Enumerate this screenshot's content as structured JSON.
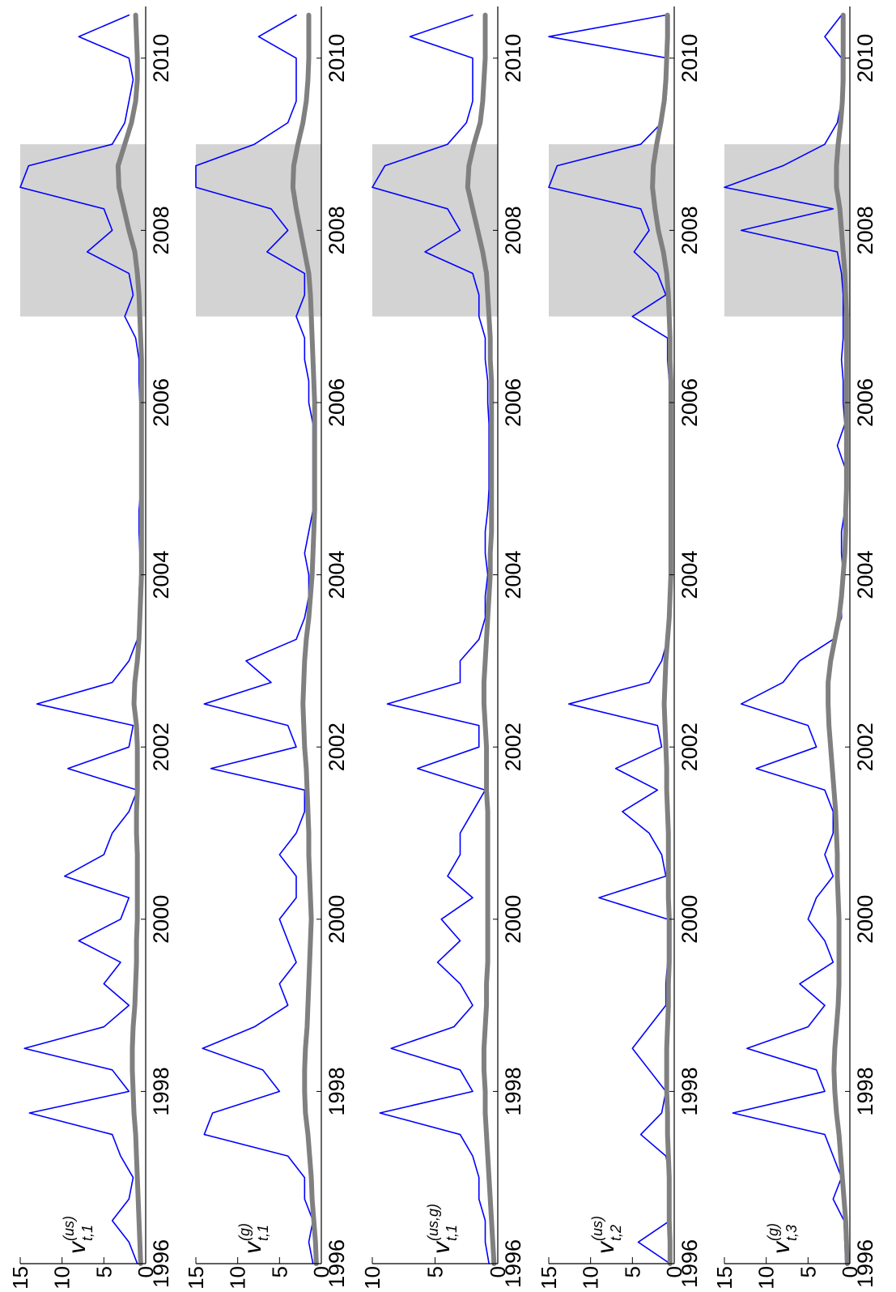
{
  "chart_data": [
    {
      "type": "line",
      "ylabel": {
        "base": "v",
        "sup": "(us)",
        "sub": "t,1"
      },
      "xlim": [
        1996,
        2010.6
      ],
      "xticks": [
        1996,
        1998,
        2000,
        2002,
        2004,
        2006,
        2008,
        2010
      ],
      "ylim": [
        0,
        15
      ],
      "yticks": [
        0,
        5,
        10,
        15
      ],
      "shade": {
        "x": [
          2007.0,
          2009.0
        ],
        "color": "#d3d3d3"
      },
      "x": [
        1996,
        1996.25,
        1996.5,
        1996.75,
        1997,
        1997.25,
        1997.5,
        1997.75,
        1998,
        1998.25,
        1998.5,
        1998.75,
        1999,
        1999.25,
        1999.5,
        1999.75,
        2000,
        2000.25,
        2000.5,
        2000.75,
        2001,
        2001.25,
        2001.5,
        2001.75,
        2002,
        2002.25,
        2002.5,
        2002.75,
        2003,
        2003.25,
        2003.5,
        2003.75,
        2004,
        2004.25,
        2004.5,
        2004.75,
        2005,
        2005.25,
        2005.5,
        2005.75,
        2006,
        2006.25,
        2006.5,
        2006.75,
        2007,
        2007.25,
        2007.5,
        2007.75,
        2008,
        2008.25,
        2008.5,
        2008.75,
        2009,
        2009.25,
        2009.5,
        2009.75,
        2010,
        2010.25,
        2010.5
      ],
      "series": [
        {
          "color": "#0000ff",
          "values": [
            1,
            2,
            4,
            2,
            1.5,
            3,
            4,
            13.9,
            2,
            4,
            14.5,
            5,
            2,
            5,
            3,
            8,
            3,
            2,
            9.7,
            5,
            4,
            2,
            1,
            9.3,
            2,
            1.5,
            13,
            4,
            2,
            1,
            0.8,
            0.8,
            0.7,
            0.7,
            0.8,
            0.8,
            0.6,
            0.6,
            0.6,
            0.6,
            0.7,
            0.8,
            0.8,
            1.2,
            2.5,
            1.5,
            2,
            7,
            4,
            5,
            15,
            14,
            4,
            2.5,
            2,
            1.5,
            2,
            8,
            2
          ]
        },
        {
          "color": "#808080",
          "values": [
            0.6,
            0.7,
            0.8,
            0.9,
            1,
            1.1,
            1.2,
            1.4,
            1.5,
            1.6,
            1.6,
            1.5,
            1.3,
            1.2,
            1.1,
            1.1,
            1,
            1,
            1,
            1,
            1.1,
            1.1,
            1,
            1,
            1,
            1.1,
            1.4,
            1.3,
            1,
            0.8,
            0.7,
            0.6,
            0.5,
            0.5,
            0.5,
            0.5,
            0.5,
            0.5,
            0.5,
            0.5,
            0.5,
            0.5,
            0.5,
            0.6,
            0.7,
            0.8,
            1,
            1.3,
            2,
            2.6,
            3.2,
            3.3,
            2.5,
            1.7,
            1.2,
            1,
            1,
            1.1,
            1.2
          ]
        }
      ]
    },
    {
      "type": "line",
      "ylabel": {
        "base": "v",
        "sup": "(g)",
        "sub": "t,1"
      },
      "xlim": [
        1996,
        2010.6
      ],
      "xticks": [
        1996,
        1998,
        2000,
        2002,
        2004,
        2006,
        2008,
        2010
      ],
      "ylim": [
        0,
        15
      ],
      "yticks": [
        0,
        5,
        10,
        15
      ],
      "shade": {
        "x": [
          2007.0,
          2009.0
        ],
        "color": "#d3d3d3"
      },
      "x": [
        1996,
        1996.25,
        1996.5,
        1996.75,
        1997,
        1997.25,
        1997.5,
        1997.75,
        1998,
        1998.25,
        1998.5,
        1998.75,
        1999,
        1999.25,
        1999.5,
        1999.75,
        2000,
        2000.25,
        2000.5,
        2000.75,
        2001,
        2001.25,
        2001.5,
        2001.75,
        2002,
        2002.25,
        2002.5,
        2002.75,
        2003,
        2003.25,
        2003.5,
        2003.75,
        2004,
        2004.25,
        2004.5,
        2004.75,
        2005,
        2005.25,
        2005.5,
        2005.75,
        2006,
        2006.25,
        2006.5,
        2006.75,
        2007,
        2007.25,
        2007.5,
        2007.75,
        2008,
        2008.25,
        2008.5,
        2008.75,
        2009,
        2009.25,
        2009.5,
        2009.75,
        2010,
        2010.25,
        2010.5
      ],
      "series": [
        {
          "color": "#0000ff",
          "values": [
            1,
            1.5,
            1,
            2,
            2,
            4,
            14,
            13,
            5,
            7,
            14.2,
            8,
            4,
            5,
            3,
            4,
            5,
            3,
            3,
            5,
            3,
            2,
            2,
            13.2,
            3,
            4,
            14,
            6,
            9,
            3,
            2,
            1.5,
            1.5,
            2,
            1.5,
            1,
            1,
            1,
            1,
            1,
            1.5,
            1.5,
            2,
            2,
            3,
            2,
            2,
            6.5,
            4,
            6,
            15,
            15,
            8,
            4,
            3,
            3,
            3,
            7.5,
            3
          ]
        },
        {
          "color": "#808080",
          "values": [
            0.6,
            0.7,
            0.9,
            1.1,
            1.2,
            1.4,
            1.6,
            1.9,
            2,
            2,
            1.9,
            1.7,
            1.6,
            1.5,
            1.4,
            1.3,
            1.2,
            1.3,
            1.4,
            1.5,
            1.5,
            1.6,
            1.7,
            1.8,
            2,
            2.1,
            2.2,
            2.1,
            2,
            1.8,
            1.5,
            1.3,
            1.1,
            1,
            0.9,
            0.8,
            0.8,
            0.8,
            0.8,
            0.8,
            0.8,
            0.9,
            1,
            1.1,
            1.2,
            1.3,
            1.5,
            2,
            2.5,
            3,
            3.4,
            3.3,
            2.8,
            2.2,
            1.8,
            1.6,
            1.5,
            1.5,
            1.5
          ]
        }
      ]
    },
    {
      "type": "line",
      "ylabel": {
        "base": "v",
        "sup": "(us,g)",
        "sub": "t,1"
      },
      "xlim": [
        1996,
        2010.6
      ],
      "xticks": [
        1996,
        1998,
        2000,
        2002,
        2004,
        2006,
        2008,
        2010
      ],
      "ylim": [
        0,
        10
      ],
      "yticks": [
        0,
        5,
        10
      ],
      "shade": {
        "x": [
          2007.0,
          2009.0
        ],
        "color": "#d3d3d3"
      },
      "x": [
        1996,
        1996.25,
        1996.5,
        1996.75,
        1997,
        1997.25,
        1997.5,
        1997.75,
        1998,
        1998.25,
        1998.5,
        1998.75,
        1999,
        1999.25,
        1999.5,
        1999.75,
        2000,
        2000.25,
        2000.5,
        2000.75,
        2001,
        2001.25,
        2001.5,
        2001.75,
        2002,
        2002.25,
        2002.5,
        2002.75,
        2003,
        2003.25,
        2003.5,
        2003.75,
        2004,
        2004.25,
        2004.5,
        2004.75,
        2005,
        2005.25,
        2005.5,
        2005.75,
        2006,
        2006.25,
        2006.5,
        2006.75,
        2007,
        2007.25,
        2007.5,
        2007.75,
        2008,
        2008.25,
        2008.5,
        2008.75,
        2009,
        2009.25,
        2009.5,
        2009.75,
        2010,
        2010.25,
        2010.5
      ],
      "series": [
        {
          "color": "#0000ff",
          "values": [
            0.7,
            1,
            1,
            1.5,
            1.5,
            2,
            3,
            9.4,
            2,
            3,
            8.5,
            3.5,
            2,
            3,
            4.8,
            3,
            4.5,
            2,
            4,
            3,
            3,
            2,
            1,
            6.4,
            1.5,
            1.5,
            8.8,
            3,
            3,
            1.5,
            1,
            1,
            0.8,
            1,
            1,
            0.8,
            0.7,
            0.7,
            0.7,
            0.7,
            0.8,
            0.8,
            1,
            1,
            1.5,
            1.5,
            2,
            5.8,
            3,
            4,
            10,
            9,
            4,
            2.5,
            2,
            2,
            2,
            7,
            2
          ]
        },
        {
          "color": "#808080",
          "values": [
            0.3,
            0.4,
            0.5,
            0.6,
            0.7,
            0.8,
            0.9,
            1,
            1,
            1.1,
            1.1,
            1,
            0.9,
            0.9,
            0.8,
            0.8,
            0.8,
            0.8,
            0.8,
            0.8,
            0.8,
            0.8,
            0.9,
            0.9,
            0.9,
            1,
            1.1,
            1.1,
            1,
            0.9,
            0.8,
            0.7,
            0.6,
            0.6,
            0.5,
            0.5,
            0.5,
            0.5,
            0.5,
            0.5,
            0.5,
            0.5,
            0.6,
            0.6,
            0.7,
            0.8,
            0.9,
            1.2,
            1.6,
            2,
            2.4,
            2.3,
            1.9,
            1.4,
            1.2,
            1.1,
            1,
            1,
            1
          ]
        }
      ]
    },
    {
      "type": "line",
      "ylabel": {
        "base": "v",
        "sup": "(us)",
        "sub": "t,2"
      },
      "xlim": [
        1996,
        2010.6
      ],
      "xticks": [
        1996,
        1998,
        2000,
        2002,
        2004,
        2006,
        2008,
        2010
      ],
      "ylim": [
        0,
        15
      ],
      "yticks": [
        0,
        5,
        10,
        15
      ],
      "shade": {
        "x": [
          2007.0,
          2009.0
        ],
        "color": "#d3d3d3"
      },
      "x": [
        1996,
        1996.25,
        1996.5,
        1996.75,
        1997,
        1997.25,
        1997.5,
        1997.75,
        1998,
        1998.25,
        1998.5,
        1998.75,
        1999,
        1999.25,
        1999.5,
        1999.75,
        2000,
        2000.25,
        2000.5,
        2000.75,
        2001,
        2001.25,
        2001.5,
        2001.75,
        2002,
        2002.25,
        2002.5,
        2002.75,
        2003,
        2003.25,
        2003.5,
        2003.75,
        2004,
        2004.25,
        2004.5,
        2004.75,
        2005,
        2005.25,
        2005.5,
        2005.75,
        2006,
        2006.25,
        2006.5,
        2006.75,
        2007,
        2007.25,
        2007.5,
        2007.75,
        2008,
        2008.25,
        2008.5,
        2008.75,
        2009,
        2009.25,
        2009.5,
        2009.75,
        2010,
        2010.25,
        2010.5
      ],
      "series": [
        {
          "color": "#0000ff",
          "values": [
            0.5,
            4.3,
            0.5,
            0.8,
            0.5,
            1,
            4,
            1.5,
            1,
            3,
            5,
            3,
            1,
            1,
            0.8,
            0.8,
            0.8,
            9,
            1,
            1.5,
            3,
            6.2,
            2,
            7,
            1.5,
            2,
            12.6,
            3,
            1.5,
            0.8,
            0.6,
            0.6,
            0.5,
            0.5,
            0.5,
            0.5,
            0.5,
            0.5,
            0.5,
            0.5,
            0.5,
            0.6,
            0.8,
            0.8,
            5,
            1,
            2,
            4.8,
            3,
            4,
            15,
            14,
            4,
            1.5,
            1,
            0.8,
            0.8,
            15,
            1
          ]
        },
        {
          "color": "#808080",
          "values": [
            0.5,
            0.5,
            0.6,
            0.6,
            0.6,
            0.7,
            0.8,
            0.8,
            0.9,
            0.9,
            0.9,
            0.8,
            0.7,
            0.7,
            0.6,
            0.6,
            0.6,
            0.7,
            0.7,
            0.7,
            0.7,
            0.8,
            0.9,
            0.9,
            1,
            1.1,
            1.2,
            1.1,
            1,
            0.8,
            0.6,
            0.5,
            0.4,
            0.4,
            0.4,
            0.4,
            0.4,
            0.4,
            0.4,
            0.4,
            0.4,
            0.4,
            0.5,
            0.5,
            0.6,
            0.7,
            0.9,
            1.3,
            1.9,
            2.3,
            2.6,
            2.5,
            2.1,
            1.6,
            1.2,
            1,
            0.9,
            0.8,
            0.8
          ]
        }
      ]
    },
    {
      "type": "line",
      "ylabel": {
        "base": "v",
        "sup": "(g)",
        "sub": "t,3"
      },
      "xlim": [
        1996,
        2010.6
      ],
      "xticks": [
        1996,
        1998,
        2000,
        2002,
        2004,
        2006,
        2008,
        2010
      ],
      "ylim": [
        0,
        15
      ],
      "yticks": [
        0,
        5,
        10,
        15
      ],
      "shade": {
        "x": [
          2007.0,
          2009.0
        ],
        "color": "#d3d3d3"
      },
      "x": [
        1996,
        1996.25,
        1996.5,
        1996.75,
        1997,
        1997.25,
        1997.5,
        1997.75,
        1998,
        1998.25,
        1998.5,
        1998.75,
        1999,
        1999.25,
        1999.5,
        1999.75,
        2000,
        2000.25,
        2000.5,
        2000.75,
        2001,
        2001.25,
        2001.5,
        2001.75,
        2002,
        2002.25,
        2002.5,
        2002.75,
        2003,
        2003.25,
        2003.5,
        2003.75,
        2004,
        2004.25,
        2004.5,
        2004.75,
        2005,
        2005.25,
        2005.5,
        2005.75,
        2006,
        2006.25,
        2006.5,
        2006.75,
        2007,
        2007.25,
        2007.5,
        2007.75,
        2008,
        2008.25,
        2008.5,
        2008.75,
        2009,
        2009.25,
        2009.5,
        2009.75,
        2010,
        2010.25,
        2010.5
      ],
      "series": [
        {
          "color": "#0000ff",
          "values": [
            0.5,
            0.6,
            0.7,
            2,
            1,
            2,
            3,
            14,
            3,
            4,
            12.3,
            5,
            3,
            6,
            2,
            3,
            5,
            4,
            2,
            3,
            2,
            2,
            3,
            11.2,
            4,
            5,
            13,
            8,
            6,
            2,
            1,
            1,
            0.8,
            1,
            1,
            0.6,
            0.6,
            0.6,
            1.5,
            0.6,
            0.8,
            0.8,
            1,
            0.8,
            0.8,
            0.8,
            1,
            1.5,
            13,
            2,
            15,
            8,
            3,
            1.5,
            1,
            1,
            1,
            3,
            1
          ]
        },
        {
          "color": "#808080",
          "values": [
            0.3,
            0.4,
            0.5,
            0.7,
            0.9,
            1.1,
            1.3,
            1.6,
            1.8,
            1.9,
            1.8,
            1.6,
            1.4,
            1.3,
            1.3,
            1.3,
            1.3,
            1.4,
            1.5,
            1.5,
            1.6,
            1.7,
            1.9,
            2.1,
            2.3,
            2.5,
            2.6,
            2.6,
            2.3,
            1.8,
            1.3,
            1,
            0.8,
            0.6,
            0.5,
            0.5,
            0.4,
            0.4,
            0.4,
            0.4,
            0.4,
            0.4,
            0.4,
            0.4,
            0.4,
            0.5,
            0.6,
            0.8,
            1,
            1.2,
            1.6,
            1.6,
            1.4,
            1.1,
            0.9,
            0.8,
            0.8,
            0.8,
            0.8
          ]
        }
      ]
    }
  ]
}
